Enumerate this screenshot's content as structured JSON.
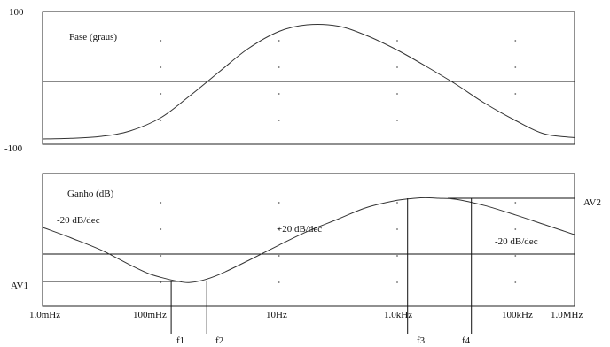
{
  "chart_data": [
    {
      "type": "line",
      "panel": "phase",
      "title": "Fase (graus)",
      "xscale": "log",
      "xlim": [
        0.001,
        1000000
      ],
      "ylim": [
        -100,
        100
      ],
      "y_tick_labels": [
        "100",
        "-100"
      ],
      "reference_line_y": 0,
      "grid": "dots",
      "series": [
        {
          "x": [
            0.001,
            0.003,
            0.01,
            0.03,
            0.1,
            0.3,
            1,
            3,
            10,
            30,
            100,
            300,
            1000,
            3000,
            10000,
            30000,
            100000,
            300000,
            1000000
          ],
          "values": [
            -92,
            -91,
            -88,
            -80,
            -60,
            -28,
            10,
            44,
            70,
            80,
            78,
            64,
            42,
            18,
            -10,
            -38,
            -64,
            -84,
            -90
          ]
        }
      ]
    },
    {
      "type": "line",
      "panel": "gain",
      "title": "Ganho (dB)",
      "xscale": "log",
      "xlim": [
        0.001,
        1000000
      ],
      "x_tick_labels": [
        "1.0mHz",
        "100mHz",
        "10Hz",
        "1.0kHz",
        "100kHz",
        "1.0MHz"
      ],
      "x_tick_values": [
        0.001,
        0.1,
        10,
        1000,
        100000,
        1000000
      ],
      "reference_lines": {
        "AV1": -40,
        "AV2": 40,
        "mid": 0
      },
      "grid": "dots",
      "series": [
        {
          "x": [
            0.001,
            0.003,
            0.01,
            0.03,
            0.06,
            0.1,
            0.2,
            0.3,
            0.5,
            1,
            3,
            10,
            30,
            100,
            300,
            1000,
            2000,
            3000,
            5000,
            10000,
            30000,
            100000,
            300000,
            1000000
          ],
          "values": [
            12,
            2,
            -10,
            -24,
            -32,
            -36,
            -40,
            -41,
            -39,
            -33,
            -20,
            -5,
            8,
            20,
            31,
            38,
            40,
            40.5,
            40,
            39,
            33,
            24,
            15,
            5
          ]
        }
      ],
      "annotations": {
        "slope_left": "-20 dB/dec",
        "slope_mid": "+20 dB/dec",
        "slope_right": "-20 dB/dec",
        "av1": "AV1",
        "av2": "AV2"
      },
      "frequency_markers": [
        {
          "label": "f1",
          "x": 0.15
        },
        {
          "label": "f2",
          "x": 0.6
        },
        {
          "label": "f3",
          "x": 1500
        },
        {
          "label": "f4",
          "x": 18000
        }
      ]
    }
  ]
}
